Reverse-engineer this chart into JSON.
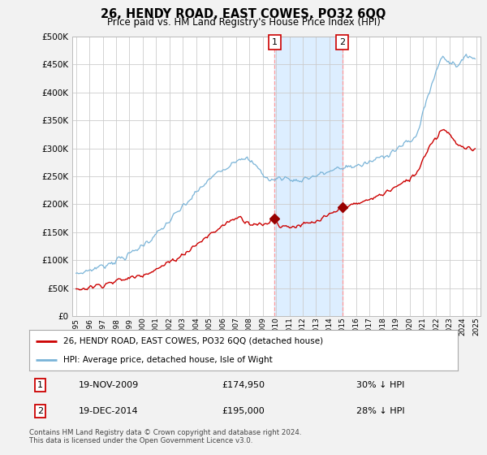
{
  "title": "26, HENDY ROAD, EAST COWES, PO32 6QQ",
  "subtitle": "Price paid vs. HM Land Registry's House Price Index (HPI)",
  "legend_line1": "26, HENDY ROAD, EAST COWES, PO32 6QQ (detached house)",
  "legend_line2": "HPI: Average price, detached house, Isle of Wight",
  "footnote": "Contains HM Land Registry data © Crown copyright and database right 2024.\nThis data is licensed under the Open Government Licence v3.0.",
  "transaction1_date": "19-NOV-2009",
  "transaction1_price": "£174,950",
  "transaction1_hpi": "30% ↓ HPI",
  "transaction1_year": 2009.89,
  "transaction1_value": 174950,
  "transaction2_date": "19-DEC-2014",
  "transaction2_price": "£195,000",
  "transaction2_hpi": "28% ↓ HPI",
  "transaction2_year": 2014.96,
  "transaction2_value": 195000,
  "ylim": [
    0,
    500000
  ],
  "yticks": [
    0,
    50000,
    100000,
    150000,
    200000,
    250000,
    300000,
    350000,
    400000,
    450000,
    500000
  ],
  "hpi_color": "#7ab4d8",
  "price_color": "#cc0000",
  "vline_color": "#ff9999",
  "span_color": "#ddeeff",
  "background_color": "#f2f2f2",
  "plot_bg_color": "#ffffff",
  "grid_color": "#cccccc",
  "box_edge_color": "#cc0000"
}
